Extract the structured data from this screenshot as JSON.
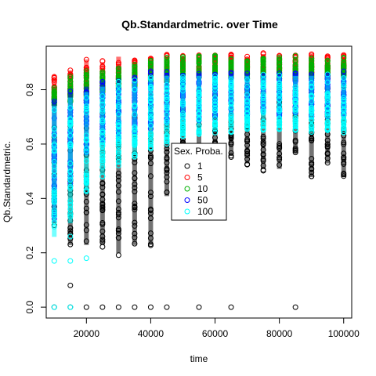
{
  "chart_data": {
    "type": "scatter",
    "title": "Qb.Standardmetric. over Time",
    "xlabel": "time",
    "ylabel": "Qb.Standardmetric.",
    "xlim": [
      7500,
      102500
    ],
    "ylim": [
      -0.04,
      0.96
    ],
    "x_ticks": [
      20000,
      40000,
      60000,
      80000,
      100000
    ],
    "x_tick_labels": [
      "20000",
      "40000",
      "60000",
      "80000",
      "100000"
    ],
    "y_ticks": [
      0.0,
      0.2,
      0.4,
      0.6,
      0.8
    ],
    "y_tick_labels": [
      "0.0",
      "0.2",
      "0.4",
      "0.6",
      "0.8"
    ],
    "grid": false,
    "legend": {
      "title": "Sex. Proba.",
      "placement": "center",
      "entries": [
        "1",
        "5",
        "10",
        "50",
        "100"
      ]
    },
    "marker": "open-circle",
    "x_values": [
      10000,
      15000,
      20000,
      25000,
      30000,
      35000,
      40000,
      45000,
      50000,
      55000,
      60000,
      65000,
      70000,
      75000,
      80000,
      85000,
      90000,
      95000,
      100000
    ],
    "series": [
      {
        "name": "1",
        "color": "#000000",
        "ranges": [
          {
            "x": 10000,
            "min": 0.3,
            "max": 0.76
          },
          {
            "x": 15000,
            "min": 0.22,
            "max": 0.77
          },
          {
            "x": 20000,
            "min": 0.22,
            "max": 0.8
          },
          {
            "x": 25000,
            "min": 0.22,
            "max": 0.82
          },
          {
            "x": 30000,
            "min": 0.19,
            "max": 0.84
          },
          {
            "x": 35000,
            "min": 0.22,
            "max": 0.85
          },
          {
            "x": 40000,
            "min": 0.22,
            "max": 0.86
          },
          {
            "x": 45000,
            "min": 0.4,
            "max": 0.87
          },
          {
            "x": 50000,
            "min": 0.36,
            "max": 0.88
          },
          {
            "x": 55000,
            "min": 0.42,
            "max": 0.88
          },
          {
            "x": 60000,
            "min": 0.5,
            "max": 0.88
          },
          {
            "x": 65000,
            "min": 0.55,
            "max": 0.89
          },
          {
            "x": 70000,
            "min": 0.52,
            "max": 0.89
          },
          {
            "x": 75000,
            "min": 0.5,
            "max": 0.89
          },
          {
            "x": 80000,
            "min": 0.5,
            "max": 0.89
          },
          {
            "x": 85000,
            "min": 0.56,
            "max": 0.9
          },
          {
            "x": 90000,
            "min": 0.47,
            "max": 0.9
          },
          {
            "x": 95000,
            "min": 0.52,
            "max": 0.9
          },
          {
            "x": 100000,
            "min": 0.47,
            "max": 0.9
          }
        ],
        "outliers": [
          {
            "x": 10000,
            "y": 0.0
          },
          {
            "x": 15000,
            "y": 0.0
          },
          {
            "x": 15000,
            "y": 0.08
          },
          {
            "x": 20000,
            "y": 0.0
          },
          {
            "x": 25000,
            "y": 0.0
          },
          {
            "x": 30000,
            "y": 0.0
          },
          {
            "x": 35000,
            "y": 0.0
          },
          {
            "x": 40000,
            "y": 0.0
          },
          {
            "x": 45000,
            "y": 0.0
          },
          {
            "x": 55000,
            "y": 0.0
          },
          {
            "x": 65000,
            "y": 0.0
          },
          {
            "x": 85000,
            "y": 0.0
          }
        ]
      },
      {
        "name": "5",
        "color": "#ff0000",
        "ranges": [
          {
            "x": 10000,
            "min": 0.76,
            "max": 0.85
          },
          {
            "x": 15000,
            "min": 0.77,
            "max": 0.88
          },
          {
            "x": 20000,
            "min": 0.78,
            "max": 0.92
          },
          {
            "x": 25000,
            "min": 0.8,
            "max": 0.91
          },
          {
            "x": 30000,
            "min": 0.82,
            "max": 0.93
          },
          {
            "x": 35000,
            "min": 0.83,
            "max": 0.92
          },
          {
            "x": 40000,
            "min": 0.84,
            "max": 0.93
          },
          {
            "x": 45000,
            "min": 0.85,
            "max": 0.93
          },
          {
            "x": 50000,
            "min": 0.86,
            "max": 0.93
          },
          {
            "x": 55000,
            "min": 0.86,
            "max": 0.93
          },
          {
            "x": 60000,
            "min": 0.86,
            "max": 0.93
          },
          {
            "x": 65000,
            "min": 0.86,
            "max": 0.93
          },
          {
            "x": 70000,
            "min": 0.86,
            "max": 0.93
          },
          {
            "x": 75000,
            "min": 0.86,
            "max": 0.94
          },
          {
            "x": 80000,
            "min": 0.86,
            "max": 0.93
          },
          {
            "x": 85000,
            "min": 0.86,
            "max": 0.93
          },
          {
            "x": 90000,
            "min": 0.86,
            "max": 0.94
          },
          {
            "x": 95000,
            "min": 0.86,
            "max": 0.93
          },
          {
            "x": 100000,
            "min": 0.86,
            "max": 0.93
          }
        ],
        "outliers": []
      },
      {
        "name": "10",
        "color": "#00b000",
        "ranges": [
          {
            "x": 10000,
            "min": 0.74,
            "max": 0.82
          },
          {
            "x": 15000,
            "min": 0.75,
            "max": 0.85
          },
          {
            "x": 20000,
            "min": 0.77,
            "max": 0.87
          },
          {
            "x": 25000,
            "min": 0.79,
            "max": 0.88
          },
          {
            "x": 30000,
            "min": 0.8,
            "max": 0.89
          },
          {
            "x": 35000,
            "min": 0.81,
            "max": 0.9
          },
          {
            "x": 40000,
            "min": 0.82,
            "max": 0.91
          },
          {
            "x": 45000,
            "min": 0.83,
            "max": 0.92
          },
          {
            "x": 50000,
            "min": 0.83,
            "max": 0.93
          },
          {
            "x": 55000,
            "min": 0.84,
            "max": 0.93
          },
          {
            "x": 60000,
            "min": 0.84,
            "max": 0.93
          },
          {
            "x": 65000,
            "min": 0.84,
            "max": 0.92
          },
          {
            "x": 70000,
            "min": 0.84,
            "max": 0.92
          },
          {
            "x": 75000,
            "min": 0.84,
            "max": 0.93
          },
          {
            "x": 80000,
            "min": 0.84,
            "max": 0.92
          },
          {
            "x": 85000,
            "min": 0.84,
            "max": 0.93
          },
          {
            "x": 90000,
            "min": 0.84,
            "max": 0.92
          },
          {
            "x": 95000,
            "min": 0.84,
            "max": 0.92
          },
          {
            "x": 100000,
            "min": 0.84,
            "max": 0.92
          }
        ],
        "outliers": []
      },
      {
        "name": "50",
        "color": "#0000ff",
        "ranges": [
          {
            "x": 10000,
            "min": 0.32,
            "max": 0.77
          },
          {
            "x": 15000,
            "min": 0.45,
            "max": 0.8
          },
          {
            "x": 20000,
            "min": 0.55,
            "max": 0.82
          },
          {
            "x": 25000,
            "min": 0.6,
            "max": 0.84
          },
          {
            "x": 30000,
            "min": 0.62,
            "max": 0.85
          },
          {
            "x": 35000,
            "min": 0.64,
            "max": 0.86
          },
          {
            "x": 40000,
            "min": 0.65,
            "max": 0.87
          },
          {
            "x": 45000,
            "min": 0.67,
            "max": 0.87
          },
          {
            "x": 50000,
            "min": 0.68,
            "max": 0.87
          },
          {
            "x": 55000,
            "min": 0.68,
            "max": 0.87
          },
          {
            "x": 60000,
            "min": 0.69,
            "max": 0.87
          },
          {
            "x": 65000,
            "min": 0.7,
            "max": 0.87
          },
          {
            "x": 70000,
            "min": 0.7,
            "max": 0.87
          },
          {
            "x": 75000,
            "min": 0.7,
            "max": 0.87
          },
          {
            "x": 80000,
            "min": 0.7,
            "max": 0.87
          },
          {
            "x": 85000,
            "min": 0.7,
            "max": 0.87
          },
          {
            "x": 90000,
            "min": 0.7,
            "max": 0.87
          },
          {
            "x": 95000,
            "min": 0.7,
            "max": 0.87
          },
          {
            "x": 100000,
            "min": 0.7,
            "max": 0.87
          }
        ],
        "outliers": []
      },
      {
        "name": "100",
        "color": "#00ffff",
        "ranges": [
          {
            "x": 10000,
            "min": 0.25,
            "max": 0.75
          },
          {
            "x": 15000,
            "min": 0.3,
            "max": 0.78
          },
          {
            "x": 20000,
            "min": 0.42,
            "max": 0.8
          },
          {
            "x": 25000,
            "min": 0.48,
            "max": 0.82
          },
          {
            "x": 30000,
            "min": 0.52,
            "max": 0.83
          },
          {
            "x": 35000,
            "min": 0.55,
            "max": 0.84
          },
          {
            "x": 40000,
            "min": 0.58,
            "max": 0.85
          },
          {
            "x": 45000,
            "min": 0.6,
            "max": 0.86
          },
          {
            "x": 50000,
            "min": 0.62,
            "max": 0.86
          },
          {
            "x": 55000,
            "min": 0.63,
            "max": 0.86
          },
          {
            "x": 60000,
            "min": 0.64,
            "max": 0.86
          },
          {
            "x": 65000,
            "min": 0.64,
            "max": 0.86
          },
          {
            "x": 70000,
            "min": 0.65,
            "max": 0.86
          },
          {
            "x": 75000,
            "min": 0.65,
            "max": 0.86
          },
          {
            "x": 80000,
            "min": 0.65,
            "max": 0.86
          },
          {
            "x": 85000,
            "min": 0.65,
            "max": 0.86
          },
          {
            "x": 90000,
            "min": 0.64,
            "max": 0.86
          },
          {
            "x": 95000,
            "min": 0.65,
            "max": 0.86
          },
          {
            "x": 100000,
            "min": 0.64,
            "max": 0.86
          }
        ],
        "outliers": [
          {
            "x": 10000,
            "y": 0.0
          },
          {
            "x": 15000,
            "y": 0.0
          },
          {
            "x": 10000,
            "y": 0.17
          },
          {
            "x": 15000,
            "y": 0.17
          },
          {
            "x": 20000,
            "y": 0.18
          },
          {
            "x": 15000,
            "y": 0.26
          }
        ]
      }
    ]
  }
}
